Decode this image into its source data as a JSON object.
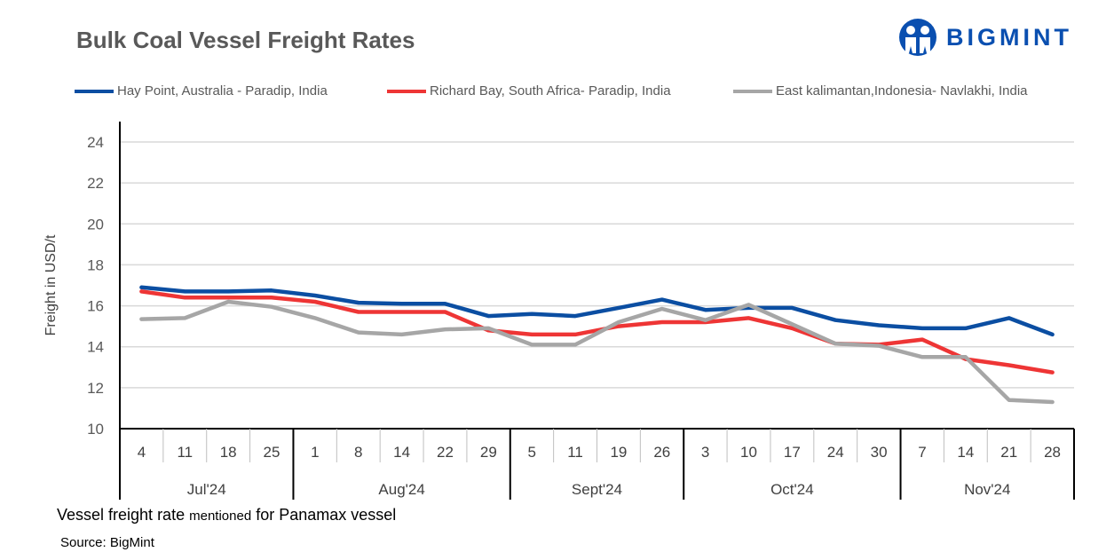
{
  "header": {
    "title": "Bulk Coal Vessel Freight Rates",
    "logo_text": "BIGMINT"
  },
  "footer": {
    "note_a": "Vessel freight rate",
    "note_b": "mentioned",
    "note_c": "for Panamax  vessel",
    "source": "Source: BigMint"
  },
  "chart_data": {
    "type": "line",
    "title": "Bulk Coal Vessel Freight Rates",
    "ylabel": "Freight  in USD/t",
    "xlabel": "",
    "ylim": [
      10,
      24
    ],
    "yticks": [
      10,
      12,
      14,
      16,
      18,
      20,
      22,
      24
    ],
    "grid": true,
    "legend_position": "top",
    "categories": [
      "4",
      "11",
      "18",
      "25",
      "1",
      "8",
      "14",
      "22",
      "29",
      "5",
      "11",
      "19",
      "26",
      "3",
      "10",
      "17",
      "24",
      "30",
      "7",
      "14",
      "21",
      "28"
    ],
    "month_groups": [
      {
        "label": "Jul'24",
        "count": 4
      },
      {
        "label": "Aug'24",
        "count": 5
      },
      {
        "label": "Sept'24",
        "count": 4
      },
      {
        "label": "Oct'24",
        "count": 5
      },
      {
        "label": "Nov'24",
        "count": 4
      }
    ],
    "series": [
      {
        "name": "Hay Point, Australia - Paradip, India",
        "color": "#0b4ea2",
        "values": [
          16.9,
          16.7,
          16.7,
          16.75,
          16.5,
          16.15,
          16.1,
          16.1,
          15.5,
          15.6,
          15.5,
          15.9,
          16.3,
          15.8,
          15.9,
          15.9,
          15.3,
          15.05,
          14.9,
          14.9,
          15.4,
          14.6
        ]
      },
      {
        "name": "Richard Bay, South Africa- Paradip, India",
        "color": "#ee3535",
        "values": [
          16.7,
          16.4,
          16.4,
          16.4,
          16.2,
          15.7,
          15.7,
          15.7,
          14.8,
          14.6,
          14.6,
          15.0,
          15.2,
          15.2,
          15.4,
          14.9,
          14.15,
          14.1,
          14.35,
          13.4,
          13.1,
          12.75
        ]
      },
      {
        "name": "East kalimantan,Indonesia- Navlakhi, India",
        "color": "#a6a6a6",
        "values": [
          15.35,
          15.4,
          16.2,
          15.95,
          15.4,
          14.7,
          14.6,
          14.85,
          14.9,
          14.1,
          14.1,
          15.2,
          15.85,
          15.3,
          16.05,
          15.1,
          14.15,
          14.05,
          13.5,
          13.5,
          11.4,
          11.3
        ]
      }
    ]
  }
}
